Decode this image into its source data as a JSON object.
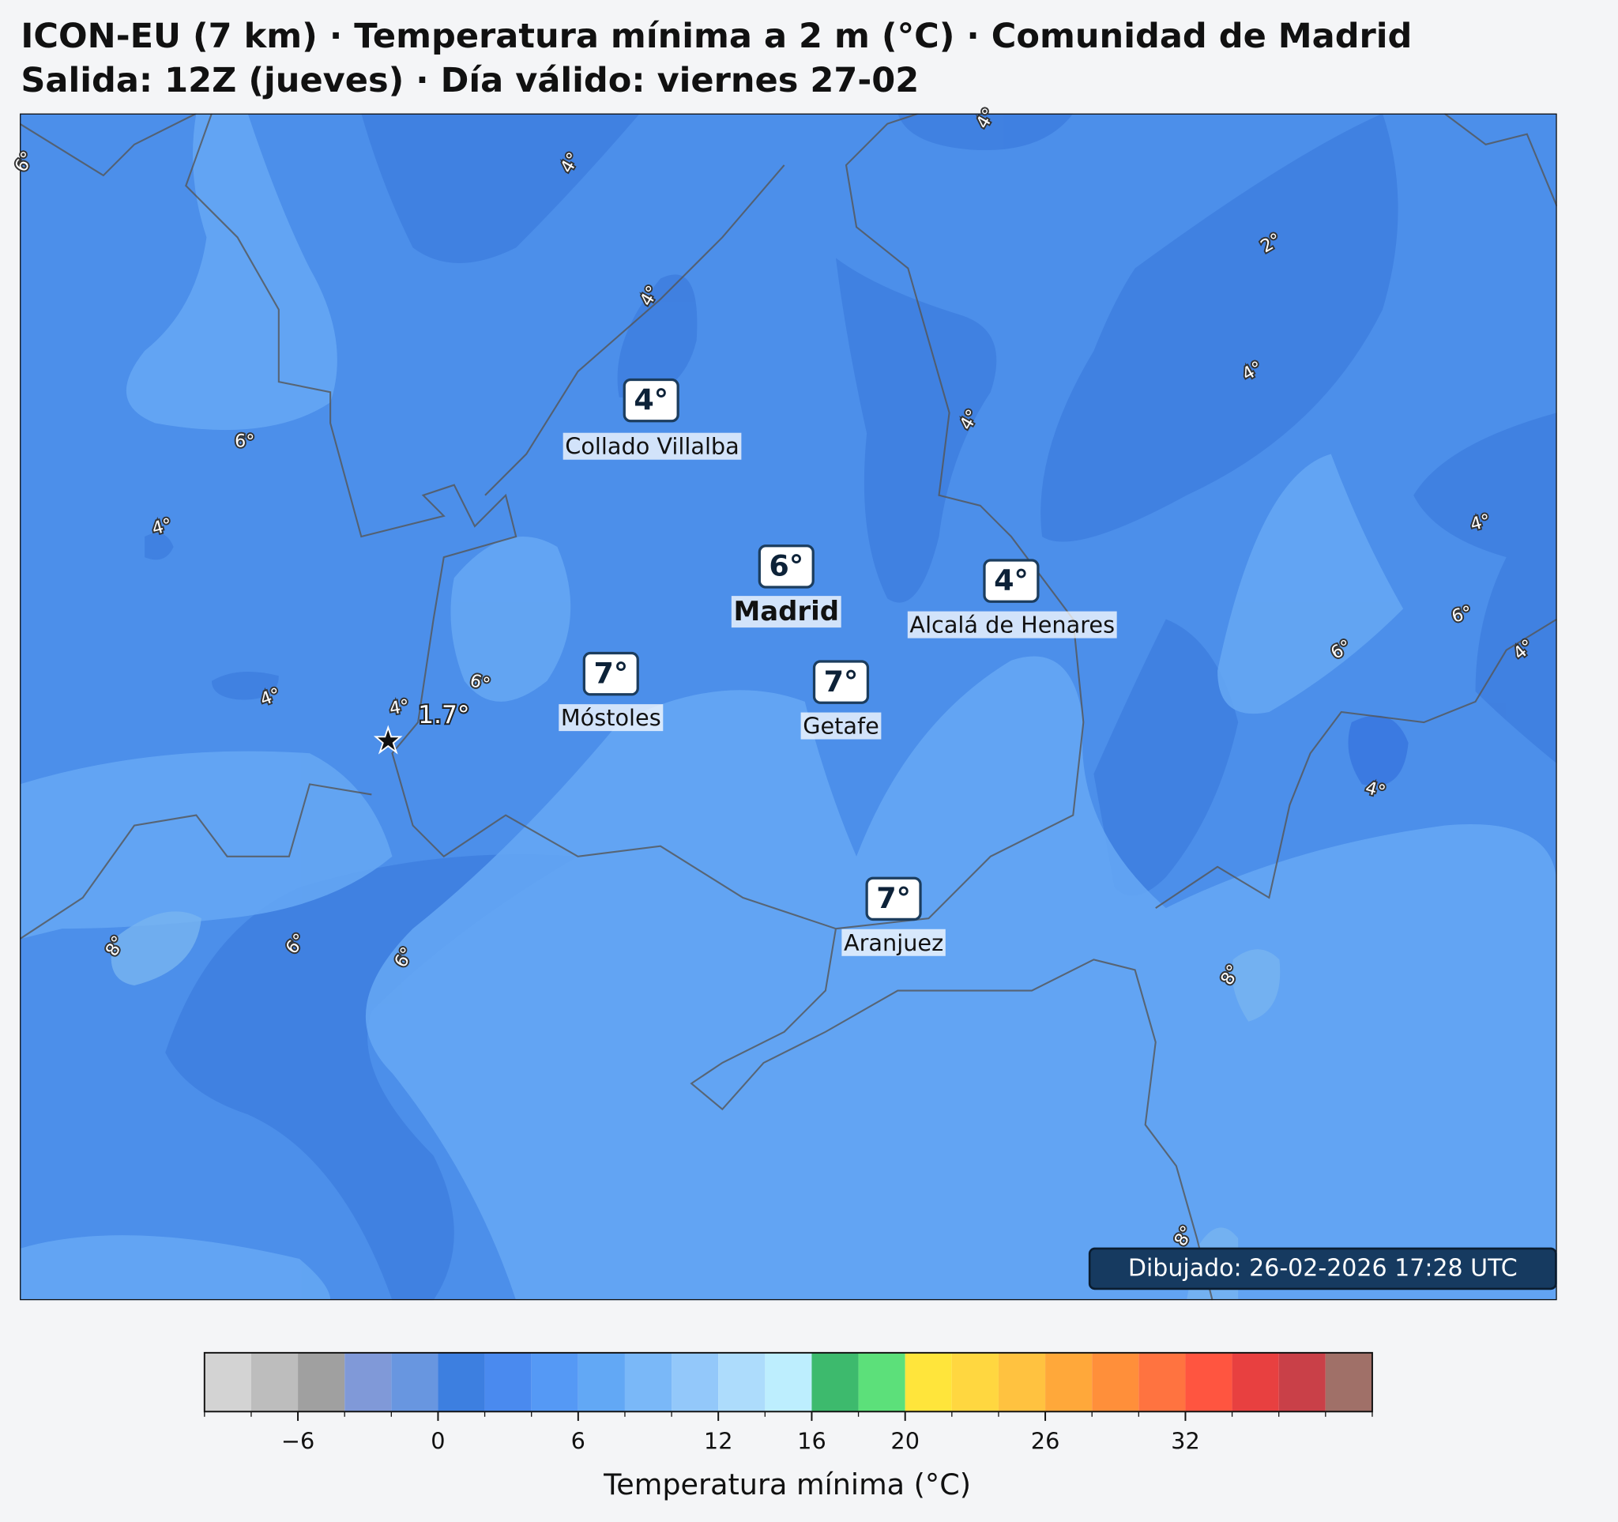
{
  "header": {
    "title": "ICON-EU (7 km) · Temperatura mínima a 2 m (°C) · Comunidad de Madrid",
    "subtitle": "Salida: 12Z (jueves) · Día válido: viernes 27-02"
  },
  "cities": [
    {
      "name": "Collado Villalba",
      "label": "4°"
    },
    {
      "name": "Madrid",
      "label": "6°"
    },
    {
      "name": "Alcalá de Henares",
      "label": "4°"
    },
    {
      "name": "Móstoles",
      "label": "7°"
    },
    {
      "name": "Getafe",
      "label": "7°"
    },
    {
      "name": "Aranjuez",
      "label": "7°"
    }
  ],
  "minimum": {
    "label": "1.7°"
  },
  "contour_labels": [
    "6°",
    "4°",
    "4°",
    "4°",
    "2°",
    "4°",
    "4°",
    "6°",
    "4°",
    "4°",
    "6°",
    "4°",
    "6°",
    "6°",
    "4°",
    "4°",
    "4°",
    "8°",
    "6°",
    "6°",
    "8°",
    "8°"
  ],
  "footer": "Dibujado: 26-02-2026 17:28 UTC",
  "colorbar": {
    "label": "Temperatura mínima (°C)",
    "bins": [
      -10,
      -8,
      -6,
      -4,
      -2,
      0,
      2,
      4,
      6,
      8,
      10,
      12,
      14,
      16,
      18,
      20,
      22,
      24,
      26,
      28,
      30,
      32,
      34,
      36,
      38,
      40
    ],
    "colors": [
      "#d3d3d3",
      "#bdbdbd",
      "#a0a0a0",
      "#8099d8",
      "#6896e0",
      "#3d7fe0",
      "#4a8aef",
      "#5599f5",
      "#62a8f5",
      "#7ab8f8",
      "#93c8fa",
      "#addcfc",
      "#bdeefe",
      "#3dba6d",
      "#5ce07a",
      "#ffe53b",
      "#ffd740",
      "#ffc240",
      "#ffa83a",
      "#ff8f3a",
      "#ff7340",
      "#ff5540",
      "#e84040",
      "#c94048",
      "#a07068"
    ],
    "ticks": [
      {
        "value": -6,
        "label": "−6"
      },
      0,
      6,
      12,
      16,
      20,
      26,
      32
    ]
  }
}
